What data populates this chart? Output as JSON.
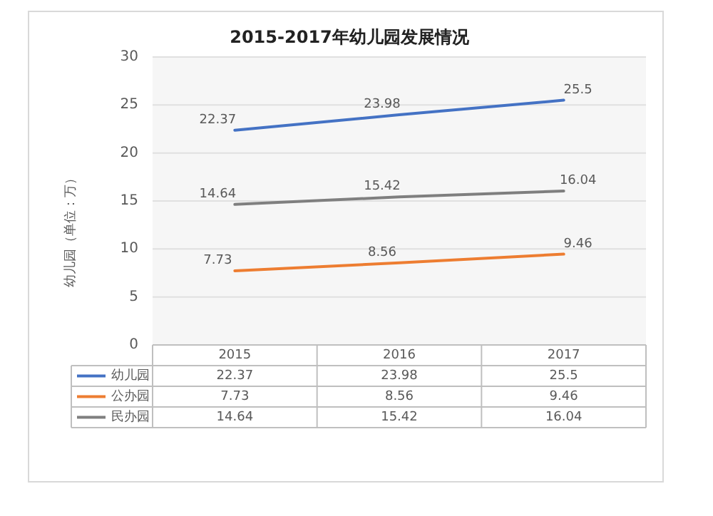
{
  "chart_data": {
    "type": "line",
    "title": "2015-2017年幼儿园发展情况",
    "ylabel": "幼儿园（单位：万）",
    "categories": [
      "2015",
      "2016",
      "2017"
    ],
    "series": [
      {
        "name": "幼儿园",
        "color": "#4472c4",
        "values": [
          22.37,
          23.98,
          25.5
        ]
      },
      {
        "name": "公办园",
        "color": "#ed7d31",
        "values": [
          7.73,
          8.56,
          9.46
        ]
      },
      {
        "name": "民办园",
        "color": "#7f7f7f",
        "values": [
          14.64,
          15.42,
          16.04
        ]
      }
    ],
    "annotations": [
      {
        "text": "22.37",
        "x": "2015",
        "y": 22.37
      },
      {
        "text": "23.98",
        "x": "2016",
        "y": 23.98
      },
      {
        "text": "25.5",
        "x": "2017",
        "y": 25.5
      },
      {
        "text": "7.73",
        "x": "2015",
        "y": 7.73
      },
      {
        "text": "8.56",
        "x": "2016",
        "y": 8.56
      },
      {
        "text": "9.46",
        "x": "2017",
        "y": 9.46
      },
      {
        "text": "14.64",
        "x": "2015",
        "y": 14.64
      },
      {
        "text": "15.42",
        "x": "2016",
        "y": 15.42
      },
      {
        "text": "16.04",
        "x": "2017",
        "y": 16.04
      }
    ],
    "ylim": [
      0,
      30
    ],
    "yticks": [
      0,
      5,
      10,
      15,
      20,
      25,
      30
    ],
    "grid": "y",
    "legend": "bottom",
    "data_labels": true,
    "marker": "none",
    "line_style": "solid"
  }
}
